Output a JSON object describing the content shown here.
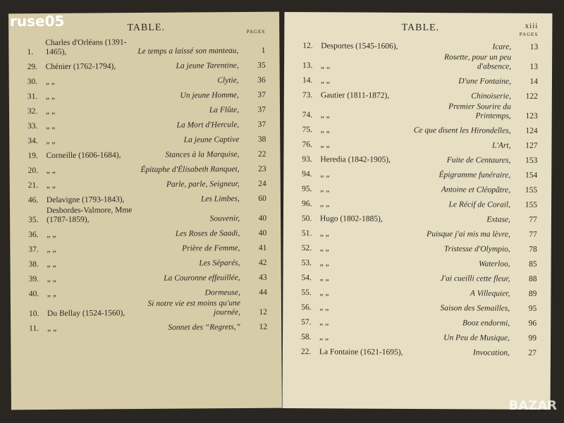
{
  "watermark": "ruse05",
  "logo": "BAZAR",
  "left_page": {
    "title": "TABLE.",
    "pages_header": "PAGES",
    "rows": [
      [
        "1.",
        "Charles d'Orléans (1391-1465),",
        "Le temps a laissé son manteau,",
        "1"
      ],
      [
        "29.",
        "Chénier (1762-1794),",
        "La jeune Tarentine,",
        "35"
      ],
      [
        "30.",
        "„ „",
        "Clytie,",
        "36"
      ],
      [
        "31.",
        "„ „",
        "Un jeune Homme,",
        "37"
      ],
      [
        "32.",
        "„ „",
        "La Flûte,",
        "37"
      ],
      [
        "33.",
        "„ „",
        "La Mort d'Hercule,",
        "37"
      ],
      [
        "34.",
        "„ „",
        "La jeune Captive",
        "38"
      ],
      [
        "19.",
        "Corneille (1606-1684),",
        "Stances à la Marquise,",
        "22"
      ],
      [
        "20.",
        "„ „",
        "Épitaphe d'Élisabeth Ranquet,",
        "23"
      ],
      [
        "21.",
        "„ „",
        "Parle, parle, Seigneur,",
        "24"
      ],
      [
        "46.",
        "Delavigne (1793-1843),",
        "Les Limbes,",
        "60"
      ],
      [
        "35.",
        "Desbordes-Valmore, Mme (1787-1859),",
        "Souvenir,",
        "40"
      ],
      [
        "36.",
        "„ „",
        "Les Roses de Saadi,",
        "40"
      ],
      [
        "37.",
        "„ „",
        "Prière de Femme,",
        "41"
      ],
      [
        "38.",
        "„ „",
        "Les Séparés,",
        "42"
      ],
      [
        "39.",
        "„ „",
        "La Couronne effeuillée,",
        "43"
      ],
      [
        "40.",
        "„ „",
        "Dormeuse,",
        "44"
      ],
      [
        "10.",
        "Du Bellay (1524-1560),",
        "Si notre vie est moins qu'une journée,",
        "12"
      ],
      [
        "11.",
        "„ „",
        "Sonnet des “Regrets,”",
        "12"
      ]
    ]
  },
  "right_page": {
    "title": "TABLE.",
    "page_number": "xiii",
    "pages_header": "PAGES",
    "rows": [
      [
        "12.",
        "Desportes (1545-1606),",
        "Icare,",
        "13"
      ],
      [
        "13.",
        "„ „",
        "Rosette, pour un peu d'absence,",
        "13"
      ],
      [
        "14.",
        "„ „",
        "D'une Fontaine,",
        "14"
      ],
      [
        "73.",
        "Gautier (1811-1872),",
        "Chinoiserie,",
        "122"
      ],
      [
        "74.",
        "„ „",
        "Premier Sourire du Printemps,",
        "123"
      ],
      [
        "75.",
        "„ „",
        "Ce que disent les Hirondelles,",
        "124"
      ],
      [
        "76.",
        "„ „",
        "L'Art,",
        "127"
      ],
      [
        "93.",
        "Heredia (1842-1905),",
        "Fuite de Centaures,",
        "153"
      ],
      [
        "94.",
        "„ „",
        "Épigramme funéraire,",
        "154"
      ],
      [
        "95.",
        "„ „",
        "Antoine et Cléopâtre,",
        "155"
      ],
      [
        "96.",
        "„ „",
        "Le Récif de Corail,",
        "155"
      ],
      [
        "50.",
        "Hugo (1802-1885),",
        "Extase,",
        "77"
      ],
      [
        "51.",
        "„ „",
        "Puisque j'ai mis ma lèvre,",
        "77"
      ],
      [
        "52.",
        "„ „",
        "Tristesse d'Olympio,",
        "78"
      ],
      [
        "53.",
        "„ „",
        "Waterloo,",
        "85"
      ],
      [
        "54.",
        "„ „",
        "J'ai cueilli cette fleur,",
        "88"
      ],
      [
        "55.",
        "„ „",
        "A Villequier,",
        "89"
      ],
      [
        "56.",
        "„ „",
        "Saison des Semailles,",
        "95"
      ],
      [
        "57.",
        "„ „",
        "Booz endormi,",
        "96"
      ],
      [
        "58.",
        "„ „",
        "Un Peu de Musique,",
        "99"
      ],
      [
        "22.",
        "La Fontaine (1621-1695),",
        "Invocation,",
        "27"
      ]
    ]
  }
}
